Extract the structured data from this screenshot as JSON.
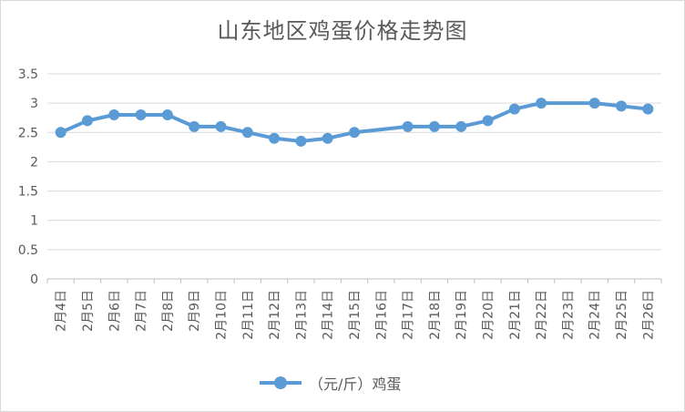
{
  "chart_data": {
    "type": "line",
    "title": "山东地区鸡蛋价格走势图",
    "categories": [
      "2月4日",
      "2月5日",
      "2月6日",
      "2月7日",
      "2月8日",
      "2月9日",
      "2月10日",
      "2月11日",
      "2月12日",
      "2月13日",
      "2月14日",
      "2月15日",
      "2月16日",
      "2月17日",
      "2月18日",
      "2月19日",
      "2月20日",
      "2月21日",
      "2月22日",
      "2月23日",
      "2月24日",
      "2月25日",
      "2月26日"
    ],
    "series": [
      {
        "name": "（元/斤）鸡蛋",
        "color": "#5b9bd5",
        "values": [
          2.5,
          2.7,
          2.8,
          2.8,
          2.8,
          2.6,
          2.6,
          2.5,
          2.4,
          2.35,
          2.4,
          2.5,
          null,
          2.6,
          2.6,
          2.6,
          2.7,
          2.9,
          3.0,
          null,
          3.0,
          2.95,
          2.9
        ]
      }
    ],
    "yticks": [
      "0",
      "0.5",
      "1",
      "1.5",
      "2",
      "2.5",
      "3",
      "3.5"
    ],
    "ylim": [
      0,
      3.5
    ],
    "grid": true,
    "legend_position": "bottom"
  }
}
